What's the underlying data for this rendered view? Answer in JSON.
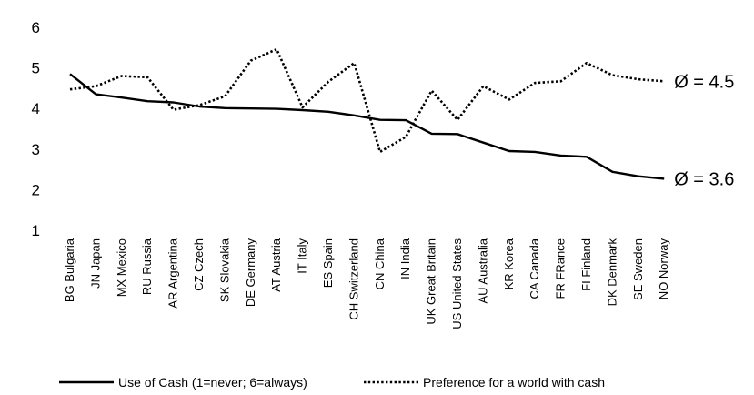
{
  "chart_data": {
    "type": "line",
    "title": "",
    "xlabel": "",
    "ylabel": "",
    "ylim": [
      1,
      6
    ],
    "yticks": [
      1,
      2,
      3,
      4,
      5,
      6
    ],
    "grid": false,
    "legend_position": "bottom",
    "categories": [
      "BG Bulgaria",
      "JN Japan",
      "MX Mexico",
      "RU Russia",
      "AR Argentina",
      "CZ Czech",
      "SK Slovakia",
      "DE Germany",
      "AT Austria",
      "IT Italy",
      "ES Spain",
      "CH Switzerland",
      "CN China",
      "IN India",
      "UK Great Britain",
      "US United States",
      "AU Australia",
      "KR Korea",
      "CA Canada",
      "FR FRance",
      "FI Finland",
      "DK Denmark",
      "SE Sweden",
      "NO Norway"
    ],
    "series": [
      {
        "name": "Use of Cash (1=never; 6=always)",
        "style": "solid",
        "color": "#000000",
        "values": [
          4.85,
          4.35,
          4.27,
          4.18,
          4.15,
          4.05,
          4.01,
          4.0,
          3.99,
          3.96,
          3.92,
          3.83,
          3.72,
          3.71,
          3.38,
          3.37,
          3.16,
          2.95,
          2.93,
          2.84,
          2.81,
          2.44,
          2.33,
          2.27
        ],
        "average_label": "Ø = 3.6"
      },
      {
        "name": "Preference for a world with cash",
        "style": "dotted",
        "color": "#000000",
        "values": [
          4.47,
          4.55,
          4.8,
          4.77,
          3.97,
          4.08,
          4.3,
          5.18,
          5.46,
          4.03,
          4.66,
          5.12,
          2.93,
          3.3,
          4.44,
          3.72,
          4.55,
          4.22,
          4.63,
          4.67,
          5.12,
          4.82,
          4.72,
          4.67
        ],
        "average_label": "Ø = 4.5"
      }
    ]
  }
}
